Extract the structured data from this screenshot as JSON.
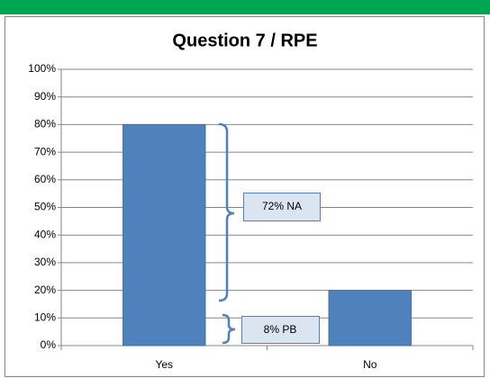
{
  "chart_data": {
    "type": "bar",
    "title": "Question 7 / RPE",
    "categories": [
      "Yes",
      "No"
    ],
    "values": [
      80,
      20
    ],
    "color": "#4f81bd",
    "ylim": [
      0,
      100
    ],
    "yticks": [
      {
        "value": 0,
        "label": "0%"
      },
      {
        "value": 10,
        "label": "10%"
      },
      {
        "value": 20,
        "label": "20%"
      },
      {
        "value": 30,
        "label": "30%"
      },
      {
        "value": 40,
        "label": "40%"
      },
      {
        "value": 50,
        "label": "50%"
      },
      {
        "value": 60,
        "label": "60%"
      },
      {
        "value": 70,
        "label": "70%"
      },
      {
        "value": 80,
        "label": "80%"
      },
      {
        "value": 90,
        "label": "90%"
      },
      {
        "value": 100,
        "label": "100%"
      }
    ],
    "grid": true,
    "annotations": [
      "72% NA",
      "8% PB"
    ]
  }
}
